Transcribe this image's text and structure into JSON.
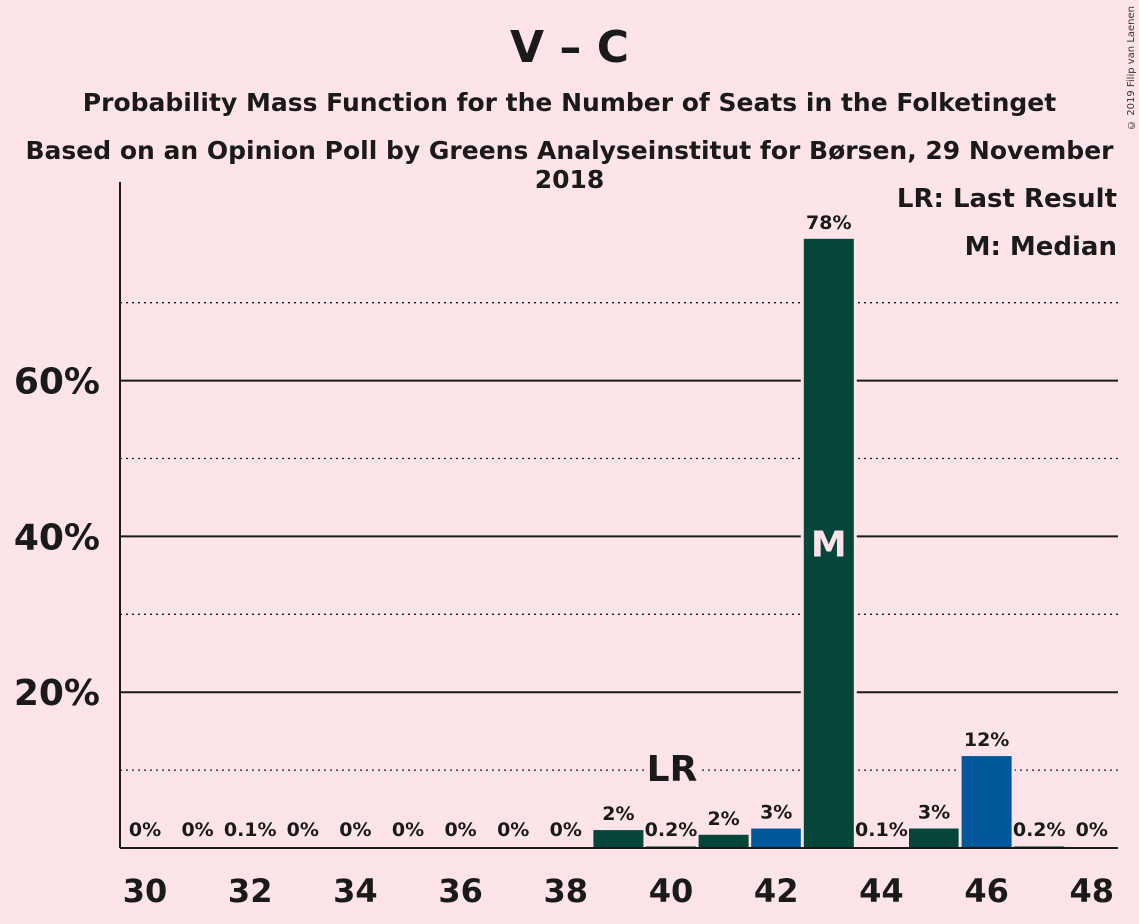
{
  "chart_data": {
    "type": "bar",
    "title": "V – C",
    "subtitle": "Probability Mass Function for the Number of Seats in the Folketinget",
    "subtitle2": "Based on an Opinion Poll by Greens Analyseinstitut for Børsen, 29 November 2018",
    "copyright": "© 2019 Filip van Laenen",
    "legend": [
      "LR: Last Result",
      "M: Median"
    ],
    "legend_position": "top-right",
    "x": [
      30,
      31,
      32,
      33,
      34,
      35,
      36,
      37,
      38,
      39,
      40,
      41,
      42,
      43,
      44,
      45,
      46,
      47,
      48
    ],
    "x_tick_labels": [
      "30",
      "32",
      "34",
      "36",
      "38",
      "40",
      "42",
      "44",
      "46",
      "48"
    ],
    "values": [
      0,
      0,
      0.1,
      0,
      0,
      0,
      0,
      0,
      0,
      2.3,
      0.2,
      1.7,
      2.5,
      78.2,
      0.1,
      2.5,
      11.8,
      0.2,
      0
    ],
    "labels": [
      "0%",
      "0%",
      "0.1%",
      "0%",
      "0%",
      "0%",
      "0%",
      "0%",
      "0%",
      "2%",
      "0.2%",
      "2%",
      "3%",
      "78%",
      "0.1%",
      "3%",
      "12%",
      "0.2%",
      "0%"
    ],
    "colors": [
      "#05453a",
      "#05453a",
      "#05453a",
      "#05453a",
      "#05453a",
      "#05453a",
      "#05453a",
      "#05453a",
      "#05453a",
      "#05453a",
      "#05453a",
      "#05453a",
      "#00579a",
      "#05453a",
      "#05453a",
      "#05453a",
      "#00579a",
      "#05453a",
      "#05453a"
    ],
    "ylim": [
      0,
      85
    ],
    "y_major_ticks": [
      20,
      40,
      60
    ],
    "y_major_tick_labels": [
      "20%",
      "40%",
      "60%"
    ],
    "y_minor_gridlines": [
      10,
      30,
      50,
      70
    ],
    "last_result_seat": 40,
    "last_result_label": "LR",
    "median_seat": 43,
    "median_label": "M"
  }
}
